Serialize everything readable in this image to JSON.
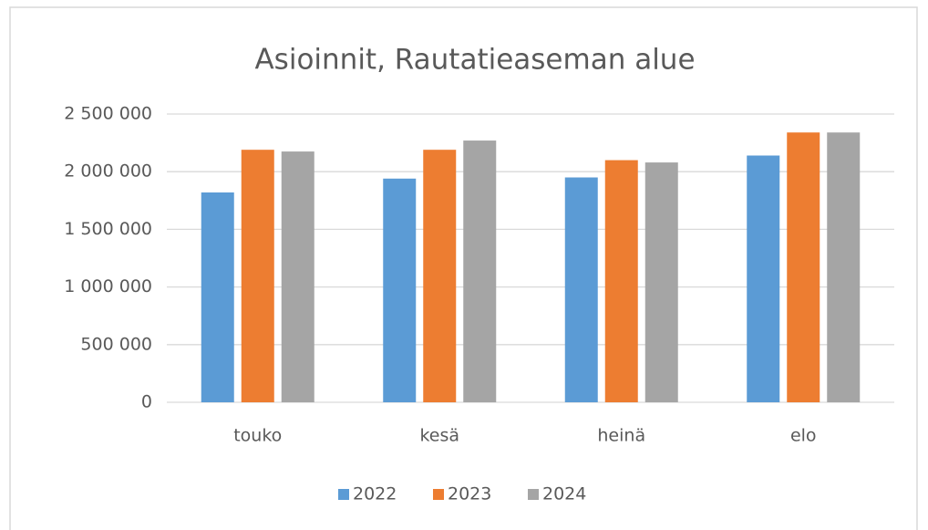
{
  "chart_data": {
    "type": "bar",
    "title": "Asioinnit, Rautatieaseman alue",
    "categories": [
      "touko",
      "kesä",
      "heinä",
      "elo"
    ],
    "series": [
      {
        "name": "2022",
        "color": "#5b9bd5",
        "values": [
          1820000,
          1940000,
          1950000,
          2140000
        ]
      },
      {
        "name": "2023",
        "color": "#ed7d31",
        "values": [
          2190000,
          2190000,
          2100000,
          2340000
        ]
      },
      {
        "name": "2024",
        "color": "#a5a5a5",
        "values": [
          2175000,
          2270000,
          2080000,
          2340000
        ]
      }
    ],
    "ylim": [
      0,
      2500000
    ],
    "yticks": [
      0,
      {
        "value": 500000,
        "label": "500 000"
      },
      {
        "value": 1000000,
        "label": "1 000 000"
      },
      {
        "value": 1500000,
        "label": "1 500 000"
      },
      {
        "value": 2000000,
        "label": "2 000 000"
      },
      {
        "value": 2500000,
        "label": "2 500 000"
      }
    ],
    "grid": true,
    "legend": "bottom"
  }
}
